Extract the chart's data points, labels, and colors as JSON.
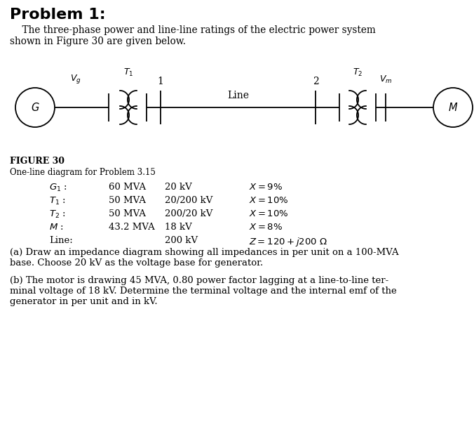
{
  "title": "Problem 1:",
  "bg_color": "#ffffff",
  "intro_line1": "    The three-phase power and line-line ratings of the electric power system",
  "intro_line2": "shown in Figure 30 are given below.",
  "figure_label": "FIGURE 30",
  "figure_caption": "One-line diagram for Problem 3.15",
  "table_rows": [
    {
      "label": "$G_1$ :",
      "col1": "60 MVA",
      "col2": "20 kV",
      "col3": "$X = 9\\%$"
    },
    {
      "label": "$T_1$ :",
      "col1": "50 MVA",
      "col2": "20/200 kV",
      "col3": "$X = 10\\%$"
    },
    {
      "label": "$T_2$ :",
      "col1": "50 MVA",
      "col2": "200/20 kV",
      "col3": "$X = 10\\%$"
    },
    {
      "label": "$M$ :",
      "col1": "43.2 MVA",
      "col2": "18 kV",
      "col3": "$X = 8\\%$"
    },
    {
      "label": "Line:",
      "col1": "",
      "col2": "200 kV",
      "col3": "$Z = 120 + j200\\ \\Omega$"
    }
  ],
  "part_a_line1": "(a) Draw an impedance diagram showing all impedances in per unit on a 100-MVA",
  "part_a_line2": "base. Choose 20 kV as the voltage base for generator.",
  "part_b_line1": "(b) The motor is drawing 45 MVA, 0.80 power factor lagging at a line-to-line ter-",
  "part_b_line2": "minal voltage of 18 kV. Determine the terminal voltage and the internal emf of the",
  "part_b_line3": "generator in per unit and in kV."
}
